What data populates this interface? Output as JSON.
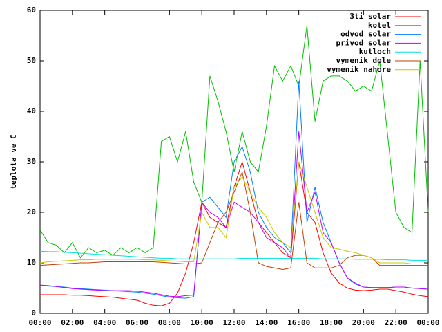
{
  "chart_data": {
    "type": "line",
    "y_label": "teplota ve C",
    "x": [
      0,
      0.5,
      1,
      1.5,
      2,
      2.5,
      3,
      3.5,
      4,
      4.5,
      5,
      5.5,
      6,
      6.5,
      7,
      7.5,
      8,
      8.5,
      9,
      9.5,
      10,
      10.5,
      11,
      11.5,
      12,
      12.5,
      13,
      13.5,
      14,
      14.5,
      15,
      15.5,
      16,
      16.5,
      17,
      17.5,
      18,
      18.5,
      19,
      19.5,
      20,
      20.5,
      21,
      21.5,
      22,
      22.5,
      23,
      23.5,
      24
    ],
    "xlim": [
      0,
      24
    ],
    "xticks": [
      {
        "value": 0,
        "label": "00:00"
      },
      {
        "value": 2,
        "label": "02:00"
      },
      {
        "value": 4,
        "label": "04:00"
      },
      {
        "value": 6,
        "label": "06:00"
      },
      {
        "value": 8,
        "label": "08:00"
      },
      {
        "value": 10,
        "label": "10:00"
      },
      {
        "value": 12,
        "label": "12:00"
      },
      {
        "value": 14,
        "label": "14:00"
      },
      {
        "value": 16,
        "label": "16:00"
      },
      {
        "value": 18,
        "label": "18:00"
      },
      {
        "value": 20,
        "label": "20:00"
      },
      {
        "value": 22,
        "label": "22:00"
      },
      {
        "value": 24,
        "label": "00:00"
      }
    ],
    "ylim": [
      0,
      60
    ],
    "yticks": [
      0,
      10,
      20,
      30,
      40,
      50,
      60
    ],
    "grid": false,
    "legend": "top-right",
    "series": [
      {
        "name": "3ti solar",
        "color": "#ff0000",
        "values": [
          3.7,
          3.7,
          3.7,
          3.7,
          3.6,
          3.6,
          3.5,
          3.4,
          3.3,
          3.2,
          3.0,
          2.8,
          2.6,
          2.0,
          1.6,
          1.5,
          2.0,
          4,
          8,
          14,
          22,
          19,
          18,
          17,
          25,
          30,
          24,
          18,
          16,
          14,
          12,
          11,
          30,
          20,
          18,
          12,
          8,
          6,
          5,
          4.6,
          4.5,
          4.6,
          4.8,
          4.8,
          4.5,
          4.2,
          3.8,
          3.5,
          3.3
        ]
      },
      {
        "name": "kotel",
        "color": "#00c000",
        "values": [
          16.5,
          14,
          13.5,
          12,
          14,
          11,
          13,
          12,
          12.5,
          11.5,
          13,
          12,
          13,
          12,
          13,
          34,
          35,
          30,
          36,
          26,
          22,
          47,
          42,
          36,
          28,
          36,
          30,
          28,
          37,
          49,
          46,
          49,
          45,
          57,
          38,
          46,
          47,
          47,
          46,
          44,
          45,
          44,
          50,
          35,
          20,
          17,
          16,
          50,
          20
        ]
      },
      {
        "name": "odvod solar",
        "color": "#0080ff",
        "values": [
          5.5,
          5.4,
          5.3,
          5.2,
          5.0,
          4.9,
          4.8,
          4.7,
          4.6,
          4.5,
          4.4,
          4.3,
          4.2,
          4.0,
          3.8,
          3.5,
          3.2,
          3.1,
          3.0,
          3.3,
          22,
          23,
          21,
          19,
          30,
          33,
          28,
          20,
          17,
          15,
          14,
          12,
          46,
          18,
          25,
          18,
          14,
          10,
          7,
          5.8,
          5.2,
          5.1,
          5.1,
          5.1,
          5.2,
          5.2,
          5.0,
          4.9,
          4.8
        ]
      },
      {
        "name": "privod solar",
        "color": "#c000ff",
        "values": [
          5.6,
          5.5,
          5.3,
          5.1,
          4.9,
          4.8,
          4.7,
          4.6,
          4.5,
          4.5,
          4.5,
          4.5,
          4.4,
          4.2,
          4.0,
          3.7,
          3.4,
          3.3,
          3.5,
          3.6,
          22,
          20,
          19,
          17,
          22,
          21,
          20,
          18,
          15,
          14,
          13,
          11,
          36,
          20,
          24,
          16,
          14,
          10,
          7,
          6,
          5.2,
          5.1,
          5.1,
          5.1,
          5.2,
          5.2,
          5.0,
          4.9,
          4.8
        ]
      },
      {
        "name": "kutloch",
        "color": "#00e0e0",
        "values": [
          12.3,
          12.2,
          12.2,
          12.1,
          12.0,
          11.9,
          11.8,
          11.7,
          11.6,
          11.5,
          11.4,
          11.3,
          11.2,
          11.1,
          11.0,
          10.9,
          10.9,
          10.8,
          10.8,
          10.8,
          10.8,
          10.8,
          10.8,
          10.8,
          10.8,
          10.9,
          10.9,
          10.9,
          10.9,
          10.9,
          10.9,
          10.9,
          10.9,
          10.9,
          10.9,
          10.8,
          10.8,
          10.8,
          10.8,
          10.7,
          10.7,
          10.7,
          10.7,
          10.6,
          10.6,
          10.6,
          10.5,
          10.5,
          10.5
        ]
      },
      {
        "name": "vymenik dole",
        "color": "#c04000",
        "values": [
          9.5,
          9.6,
          9.7,
          9.8,
          9.9,
          10,
          10,
          10.1,
          10.2,
          10.2,
          10.2,
          10.2,
          10.2,
          10.2,
          10.2,
          10.1,
          10,
          9.9,
          9.8,
          9.8,
          10,
          14,
          18,
          20,
          24,
          28,
          20,
          10,
          9.3,
          9,
          8.7,
          9,
          22,
          10,
          9,
          9,
          9,
          9.5,
          11,
          11.5,
          11.5,
          11,
          9.5,
          9.5,
          9.5,
          9.5,
          9.5,
          9.5,
          9.5
        ]
      },
      {
        "name": "vymenik nahore",
        "color": "#c8c800",
        "values": [
          10,
          10.2,
          10.3,
          10.4,
          10.5,
          10.6,
          10.6,
          10.7,
          10.7,
          10.7,
          10.7,
          10.7,
          10.7,
          10.6,
          10.6,
          10.5,
          10.4,
          10.3,
          10.2,
          10.2,
          20,
          17,
          17,
          15,
          25,
          27,
          24,
          21,
          19,
          16,
          14,
          13,
          30,
          25,
          20,
          15,
          13,
          12.7,
          12.3,
          12,
          11.5,
          11,
          10,
          10,
          10,
          10,
          9.8,
          9.8,
          9.8
        ]
      }
    ]
  }
}
